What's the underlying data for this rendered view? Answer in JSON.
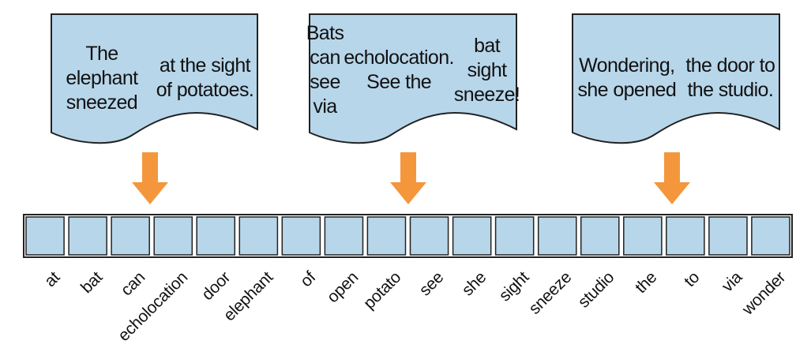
{
  "documents": [
    {
      "lines": [
        "The elephant sneezed",
        "at the sight of potatoes."
      ]
    },
    {
      "lines": [
        "Bats can see via",
        "echolocation. See the",
        "bat sight sneeze!"
      ]
    },
    {
      "lines": [
        "Wondering, she opened",
        "the door to the studio."
      ]
    }
  ],
  "vocabulary": [
    "at",
    "bat",
    "can",
    "echolocation",
    "door",
    "elephant",
    "of",
    "open",
    "potato",
    "see",
    "she",
    "sight",
    "sneeze",
    "studio",
    "the",
    "to",
    "via",
    "wonder"
  ],
  "colors": {
    "doc_fill": "#b7d6ea",
    "doc_stroke": "#222222",
    "arrow": "#f4973c",
    "cell_fill": "#b7d6ea",
    "cell_stroke": "#222222"
  },
  "icons": {
    "arrow": "down-arrow-icon"
  }
}
